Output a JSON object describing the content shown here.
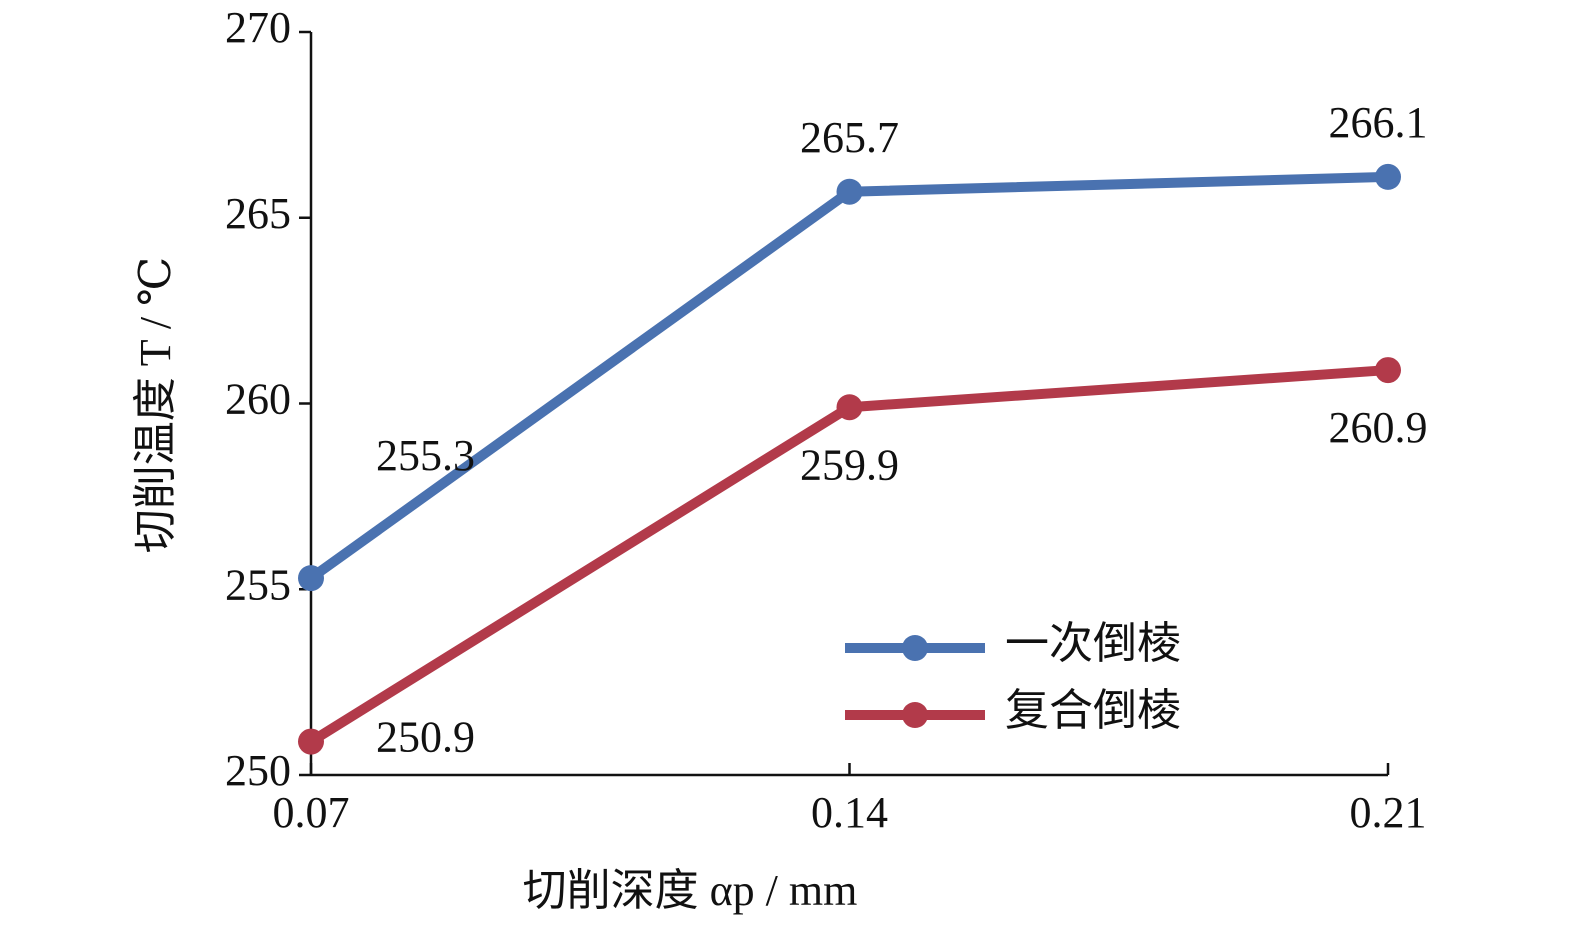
{
  "chart_data": {
    "type": "line",
    "x_label": "切削深度 αp / mm",
    "y_label": "切削温度 T / ℃",
    "x": [
      0.07,
      0.14,
      0.21
    ],
    "series": [
      {
        "name": "一次倒棱",
        "color": "#4a72b0",
        "values": [
          255.3,
          265.7,
          266.1
        ]
      },
      {
        "name": "复合倒棱",
        "color": "#b23a4a",
        "values": [
          250.9,
          259.9,
          260.9
        ]
      }
    ],
    "xlim": [
      0.07,
      0.21
    ],
    "xticks": [
      0.07,
      0.14,
      0.21
    ],
    "ylim": [
      250,
      270
    ],
    "yticks": [
      250,
      255,
      260,
      265,
      270
    ],
    "grid": false,
    "legend": "lower right",
    "data_labels": true
  }
}
